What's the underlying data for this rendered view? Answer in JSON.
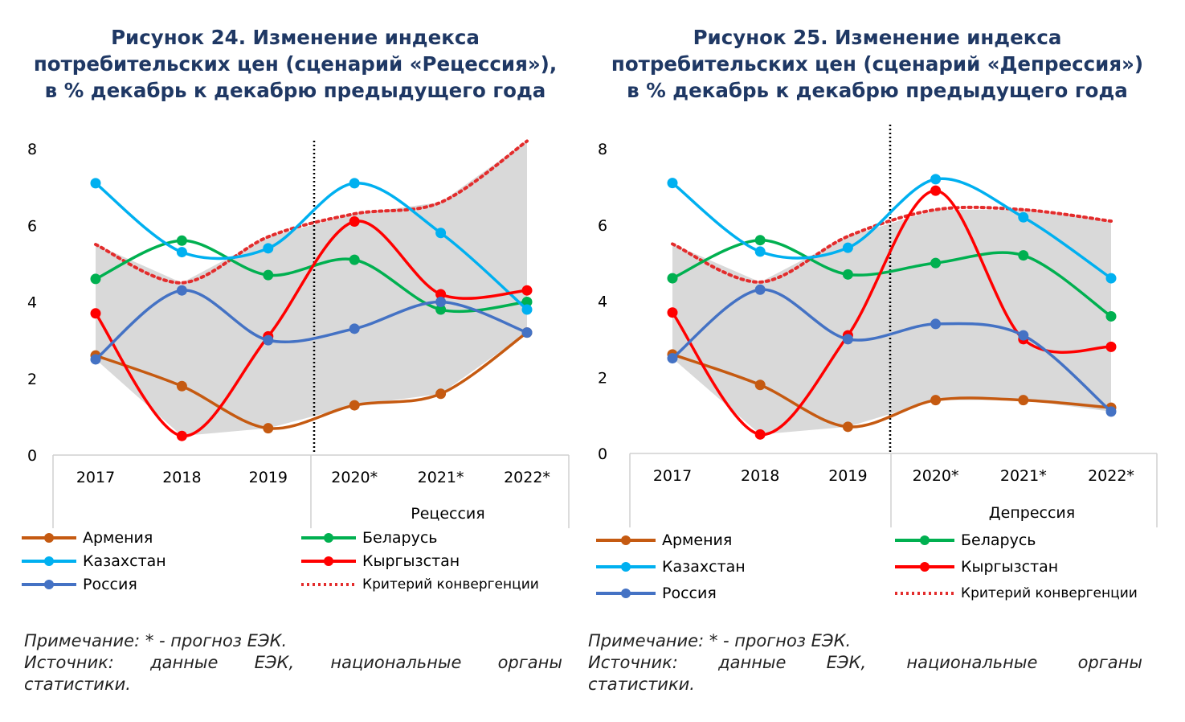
{
  "legend_labels": {
    "armenia": "Армения",
    "belarus": "Беларусь",
    "kazakhstan": "Казахстан",
    "kyrgyzstan": "Кыргызстан",
    "russia": "Россия",
    "criterion": "Критерий конвергенции"
  },
  "colors": {
    "armenia": "#c55a11",
    "belarus": "#00b050",
    "kazakhstan": "#00b0f0",
    "kyrgyzstan": "#ff0000",
    "russia": "#4472c4",
    "criterion": "#e32c2c",
    "band": "#d9d9d9",
    "title": "#1f3864"
  },
  "notes": {
    "note_line": "Примечание: * - прогноз ЕЭК.",
    "source_words": [
      "Источник:",
      "данные",
      "ЕЭК,",
      "национальные",
      "органы"
    ],
    "source_line2": "статистики."
  },
  "chart_data": [
    {
      "type": "line",
      "title_lines": [
        "Рисунок 24. Изменение индекса",
        "потребительских цен (сценарий «Рецессия»),",
        "в % декабрь к декабрю предыдущего года"
      ],
      "categories": [
        "2017",
        "2018",
        "2019",
        "2020*",
        "2021*",
        "2022*"
      ],
      "scenario_label": "Рецессия",
      "ylim": [
        0,
        8
      ],
      "yticks": [
        "0",
        "2",
        "4",
        "6",
        "8"
      ],
      "series": [
        {
          "name": "Армения",
          "key": "armenia",
          "values": [
            2.6,
            1.8,
            0.7,
            1.3,
            1.6,
            3.2
          ]
        },
        {
          "name": "Беларусь",
          "key": "belarus",
          "values": [
            4.6,
            5.6,
            4.7,
            5.1,
            3.8,
            4.0
          ]
        },
        {
          "name": "Казахстан",
          "key": "kazakhstan",
          "values": [
            7.1,
            5.3,
            5.4,
            7.1,
            5.8,
            3.8
          ]
        },
        {
          "name": "Кыргызстан",
          "key": "kyrgyzstan",
          "values": [
            3.7,
            0.5,
            3.1,
            6.1,
            4.2,
            4.3
          ]
        },
        {
          "name": "Россия",
          "key": "russia",
          "values": [
            2.5,
            4.3,
            3.0,
            3.3,
            4.0,
            3.2
          ]
        },
        {
          "name": "Критерий конвергенции",
          "key": "criterion",
          "values": [
            5.5,
            4.5,
            5.7,
            6.3,
            6.6,
            8.2
          ]
        }
      ]
    },
    {
      "type": "line",
      "title_lines": [
        "Рисунок 25. Изменение индекса",
        "потребительских цен (сценарий «Депрессия»)",
        "в % декабрь к декабрю предыдущего года"
      ],
      "categories": [
        "2017",
        "2018",
        "2019",
        "2020*",
        "2021*",
        "2022*"
      ],
      "scenario_label": "Депрессия",
      "ylim": [
        0,
        8
      ],
      "yticks": [
        "0",
        "2",
        "4",
        "6",
        "8"
      ],
      "series": [
        {
          "name": "Армения",
          "key": "armenia",
          "values": [
            2.6,
            1.8,
            0.7,
            1.4,
            1.4,
            1.2
          ]
        },
        {
          "name": "Беларусь",
          "key": "belarus",
          "values": [
            4.6,
            5.6,
            4.7,
            5.0,
            5.2,
            3.6
          ]
        },
        {
          "name": "Казахстан",
          "key": "kazakhstan",
          "values": [
            7.1,
            5.3,
            5.4,
            7.2,
            6.2,
            4.6
          ]
        },
        {
          "name": "Кыргызстан",
          "key": "kyrgyzstan",
          "values": [
            3.7,
            0.5,
            3.1,
            6.9,
            3.0,
            2.8
          ]
        },
        {
          "name": "Россия",
          "key": "russia",
          "values": [
            2.5,
            4.3,
            3.0,
            3.4,
            3.1,
            1.1
          ]
        },
        {
          "name": "Критерий конвергенции",
          "key": "criterion",
          "values": [
            5.5,
            4.5,
            5.7,
            6.4,
            6.4,
            6.1
          ]
        }
      ]
    }
  ]
}
